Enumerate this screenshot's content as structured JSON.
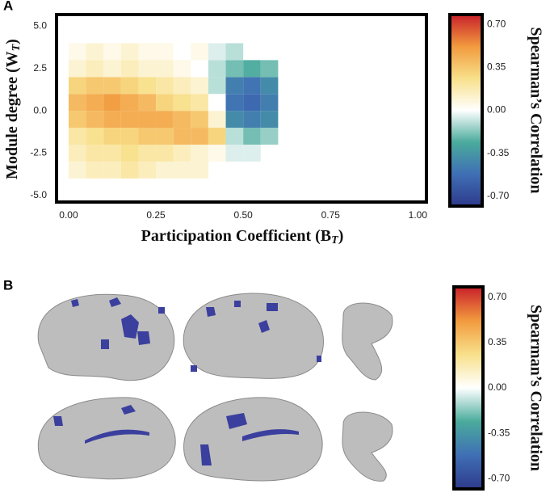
{
  "chart_data": [
    {
      "type": "heatmap",
      "panel": "A",
      "xlabel": [
        "Participation Coefficient (B",
        "T",
        ")"
      ],
      "ylabel": [
        "Module degree (W",
        "T",
        ")"
      ],
      "xlim": [
        -0.03,
        1.02
      ],
      "ylim": [
        -5.3,
        5.6
      ],
      "xticks": [
        {
          "value": 0,
          "label": "0.00"
        },
        {
          "value": 0.25,
          "label": "0.25"
        },
        {
          "value": 0.5,
          "label": "0.50"
        },
        {
          "value": 0.75,
          "label": "0.75"
        },
        {
          "value": 1,
          "label": "1.00"
        }
      ],
      "yticks": [
        {
          "value": 5,
          "label": "5.0"
        },
        {
          "value": 2.5,
          "label": "2.5"
        },
        {
          "value": 0,
          "label": "0.0"
        },
        {
          "value": -2.5,
          "label": "-2.5"
        },
        {
          "value": -5,
          "label": "-5.0"
        }
      ],
      "x_bins": [
        0,
        0.05,
        0.1,
        0.15,
        0.2,
        0.25,
        0.3,
        0.35,
        0.4,
        0.45,
        0.5,
        0.55,
        0.6
      ],
      "y_bins": [
        -4,
        -3,
        -2,
        -1,
        0,
        1,
        2,
        3,
        4
      ],
      "values": [
        [
          0.1,
          0.15,
          0.15,
          0.2,
          0.15,
          0.1,
          0.1,
          0.1,
          null,
          null,
          null,
          null
        ],
        [
          0.15,
          0.2,
          0.2,
          0.25,
          0.2,
          0.2,
          0.15,
          0.1,
          0.05,
          -0.05,
          -0.05,
          null
        ],
        [
          0.2,
          0.25,
          0.3,
          0.3,
          0.35,
          0.35,
          0.4,
          0.4,
          0.3,
          -0.1,
          -0.2,
          -0.15
        ],
        [
          0.35,
          0.4,
          0.45,
          0.45,
          0.45,
          0.45,
          0.4,
          0.35,
          0.1,
          -0.4,
          -0.45,
          -0.4
        ],
        [
          0.4,
          0.45,
          0.5,
          0.45,
          0.4,
          0.3,
          0.25,
          0.2,
          0.0,
          -0.5,
          -0.55,
          -0.45
        ],
        [
          0.3,
          0.35,
          0.35,
          0.3,
          0.25,
          0.2,
          0.15,
          0.1,
          -0.1,
          -0.45,
          -0.5,
          -0.4
        ],
        [
          0.1,
          0.15,
          0.1,
          0.15,
          0.1,
          0.1,
          0.05,
          0.0,
          -0.1,
          -0.2,
          -0.25,
          -0.2
        ],
        [
          0.05,
          0.1,
          0.05,
          0.1,
          0.05,
          0.05,
          0.0,
          0.05,
          -0.05,
          -0.1,
          null,
          null
        ]
      ],
      "colorbar": {
        "label": "Spearman’s Correlation",
        "lim": [
          -0.78,
          0.78
        ],
        "colors": [
          "#2e3a8c",
          "#3f6fb5",
          "#4aab9c",
          "#ffffff",
          "#f8e08a",
          "#f29a3e",
          "#c8202a"
        ],
        "ticks": [
          {
            "value": 0.7,
            "label": "0.70"
          },
          {
            "value": 0.35,
            "label": "0.35"
          },
          {
            "value": 0,
            "label": "0.00"
          },
          {
            "value": -0.35,
            "label": "-0.35"
          },
          {
            "value": -0.7,
            "label": "-0.70"
          }
        ]
      }
    },
    {
      "type": "brain-map",
      "panel": "B",
      "colorbar": {
        "label": "Spearman’s Correlation",
        "lim": [
          -0.78,
          0.78
        ],
        "colors": [
          "#2e3a8c",
          "#3f6fb5",
          "#4aab9c",
          "#ffffff",
          "#f8e08a",
          "#f29a3e",
          "#c8202a"
        ],
        "ticks": [
          {
            "value": 0.7,
            "label": "0.70"
          },
          {
            "value": 0.35,
            "label": "0.35"
          },
          {
            "value": 0,
            "label": "0.00"
          },
          {
            "value": -0.35,
            "label": "-0.35"
          },
          {
            "value": -0.7,
            "label": "-0.70"
          }
        ]
      }
    }
  ]
}
